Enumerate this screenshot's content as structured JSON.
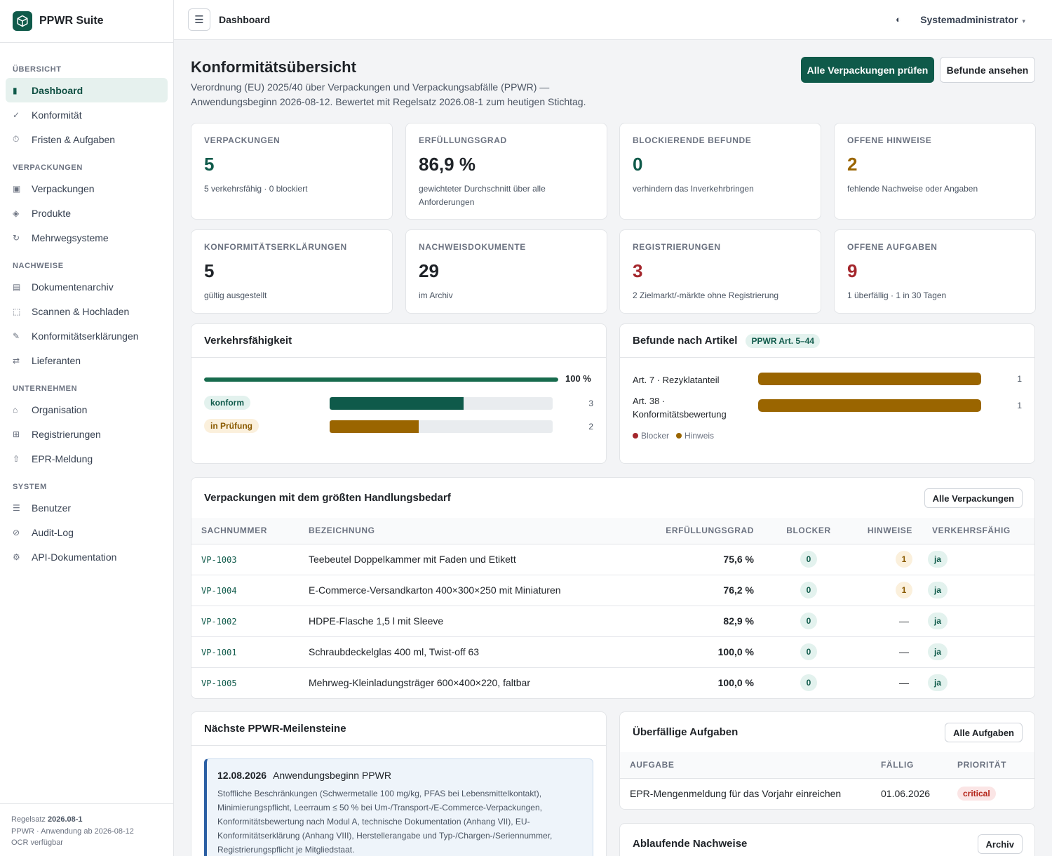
{
  "app": {
    "name": "PPWR Suite",
    "logo_icon": "box-icon",
    "accent": "#0f5a4a"
  },
  "sidebar": {
    "sections": [
      {
        "title": "ÜBERSICHT",
        "items": [
          {
            "icon": "▮",
            "label": "Dashboard",
            "active": true
          },
          {
            "icon": "✓",
            "label": "Konformität"
          },
          {
            "icon": "⏱",
            "label": "Fristen & Aufgaben"
          }
        ]
      },
      {
        "title": "VERPACKUNGEN",
        "items": [
          {
            "icon": "▣",
            "label": "Verpackungen"
          },
          {
            "icon": "◈",
            "label": "Produkte"
          },
          {
            "icon": "↻",
            "label": "Mehrwegsysteme"
          }
        ]
      },
      {
        "title": "NACHWEISE",
        "items": [
          {
            "icon": "▤",
            "label": "Dokumentenarchiv"
          },
          {
            "icon": "⬚",
            "label": "Scannen & Hochladen"
          },
          {
            "icon": "✎",
            "label": "Konformitätserklärungen"
          },
          {
            "icon": "⇄",
            "label": "Lieferanten"
          }
        ]
      },
      {
        "title": "UNTERNEHMEN",
        "items": [
          {
            "icon": "⌂",
            "label": "Organisation"
          },
          {
            "icon": "⊞",
            "label": "Registrierungen"
          },
          {
            "icon": "⇧",
            "label": "EPR-Meldung"
          }
        ]
      },
      {
        "title": "SYSTEM",
        "items": [
          {
            "icon": "☰",
            "label": "Benutzer"
          },
          {
            "icon": "⊘",
            "label": "Audit-Log"
          },
          {
            "icon": "⚙",
            "label": "API-Dokumentation"
          }
        ]
      }
    ],
    "footer": {
      "ruleset_prefix": "Regelsatz ",
      "ruleset_value": "2026.08-1",
      "line2": "PPWR · Anwendung ab 2026-08-12",
      "line3": "OCR verfügbar"
    }
  },
  "topbar": {
    "menu_icon": "☰",
    "title": "Dashboard",
    "theme_icon": "◐",
    "user": "Systemadministrator",
    "caret": "▾"
  },
  "header": {
    "title": "Konformitätsübersicht",
    "subtitle": "Verordnung (EU) 2025/40 über Verpackungen und Verpackungsabfälle (PPWR) — Anwendungsbeginn 2026-08-12. Bewertet mit Regelsatz 2026.08-1 zum heutigen Stichtag.",
    "primary_button": "Alle Verpackungen prüfen",
    "secondary_button": "Befunde ansehen"
  },
  "stats": [
    {
      "label": "VERPACKUNGEN",
      "value": "5",
      "sub": "5 verkehrsfähig · 0 blockiert",
      "color": "#0f5a4a"
    },
    {
      "label": "ERFÜLLUNGSGRAD",
      "value": "86,9 %",
      "sub": "gewichteter Durchschnitt über alle Anforderungen",
      "color": "#1f2328"
    },
    {
      "label": "BLOCKIERENDE BEFUNDE",
      "value": "0",
      "sub": "verhindern das Inverkehrbringen",
      "color": "#0f5a4a"
    },
    {
      "label": "OFFENE HINWEISE",
      "value": "2",
      "sub": "fehlende Nachweise oder Angaben",
      "color": "#9a6500"
    },
    {
      "label": "KONFORMITÄTSERKLÄRUNGEN",
      "value": "5",
      "sub": "gültig ausgestellt",
      "color": "#1f2328"
    },
    {
      "label": "NACHWEISDOKUMENTE",
      "value": "29",
      "sub": "im Archiv",
      "color": "#1f2328"
    },
    {
      "label": "REGISTRIERUNGEN",
      "value": "3",
      "sub": "2 Zielmarkt/-märkte ohne Registrierung",
      "color": "#a4262c"
    },
    {
      "label": "OFFENE AUFGABEN",
      "value": "9",
      "sub": "1 überfällig · 1 in 30 Tagen",
      "color": "#a4262c"
    }
  ],
  "verkehr": {
    "title": "Verkehrsfähigkeit",
    "overall_fraction": 1.0,
    "overall_label": "100 %",
    "rows": [
      {
        "label": "konform",
        "count": "3",
        "fraction": 0.6,
        "color": "#0f5a4a",
        "badge": "green"
      },
      {
        "label": "in Prüfung",
        "count": "2",
        "fraction": 0.4,
        "color": "#9a6500",
        "badge": "amber"
      }
    ]
  },
  "befunde": {
    "title": "Befunde nach Artikel",
    "tag": "PPWR Art. 5–44",
    "rows": [
      {
        "label": "Art. 7 · Rezyklatanteil",
        "count": "1",
        "fraction": 1.0
      },
      {
        "label": "Art. 38 · Konformitätsbewertung",
        "count": "1",
        "fraction": 1.0
      }
    ],
    "legend": [
      {
        "label": "Blocker",
        "color": "#a4262c"
      },
      {
        "label": "Hinweis",
        "color": "#9a6500"
      }
    ]
  },
  "packaging": {
    "title": "Verpackungen mit dem größten Handlungsbedarf",
    "button": "Alle Verpackungen",
    "columns": [
      "SACHNUMMER",
      "BEZEICHNUNG",
      "ERFÜLLUNGSGRAD",
      "BLOCKER",
      "HINWEISE",
      "VERKEHRSFÄHIG"
    ],
    "rows": [
      {
        "id": "VP-1003",
        "name": "Teebeutel Doppelkammer mit Faden und Etikett",
        "grade": "75,6 %",
        "blocker": "0",
        "hints": "1",
        "ok": "ja"
      },
      {
        "id": "VP-1004",
        "name": "E-Commerce-Versandkarton 400×300×250 mit Miniaturen",
        "grade": "76,2 %",
        "blocker": "0",
        "hints": "1",
        "ok": "ja"
      },
      {
        "id": "VP-1002",
        "name": "HDPE-Flasche 1,5 l mit Sleeve",
        "grade": "82,9 %",
        "blocker": "0",
        "hints": "—",
        "ok": "ja"
      },
      {
        "id": "VP-1001",
        "name": "Schraubdeckelglas 400 ml, Twist-off 63",
        "grade": "100,0 %",
        "blocker": "0",
        "hints": "—",
        "ok": "ja"
      },
      {
        "id": "VP-1005",
        "name": "Mehrweg-Kleinladungsträger 600×400×220, faltbar",
        "grade": "100,0 %",
        "blocker": "0",
        "hints": "—",
        "ok": "ja"
      }
    ]
  },
  "milestones": {
    "title": "Nächste PPWR-Meilensteine",
    "items": [
      {
        "date": "12.08.2026",
        "title": "Anwendungsbeginn PPWR",
        "text": "Stoffliche Beschränkungen (Schwermetalle 100 mg/kg, PFAS bei Lebensmittelkontakt), Minimierungspflicht, Leerraum ≤ 50 % bei Um-/Transport-/E-Commerce-Verpackungen, Konformitätsbewertung nach Modul A, technische Dokumentation (Anhang VII), EU-Konformitätserklärung (Anhang VIII), Herstellerangabe und Typ-/Chargen-/Seriennummer, Registrierungspflicht je Mitgliedstaat."
      }
    ]
  },
  "overdue": {
    "title": "Überfällige Aufgaben",
    "button": "Alle Aufgaben",
    "columns": [
      "AUFGABE",
      "FÄLLIG",
      "PRIORITÄT"
    ],
    "rows": [
      {
        "task": "EPR-Mengenmeldung für das Vorjahr einreichen",
        "due": "01.06.2026",
        "priority": "critical"
      }
    ]
  },
  "expiring": {
    "title": "Ablaufende Nachweise",
    "button": "Archiv"
  }
}
